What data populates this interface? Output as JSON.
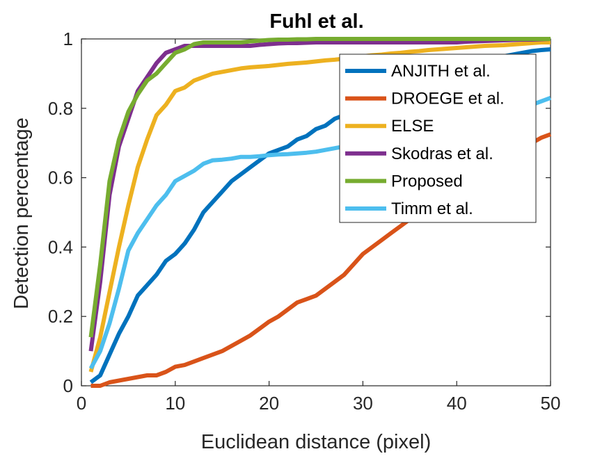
{
  "chart_data": {
    "type": "line",
    "title": "Fuhl et al.",
    "xlabel": "Euclidean distance (pixel)",
    "ylabel": "Detection percentage",
    "xlim": [
      0,
      50
    ],
    "ylim": [
      0,
      1
    ],
    "xticks": [
      0,
      10,
      20,
      30,
      40,
      50
    ],
    "yticks": [
      0,
      0.2,
      0.4,
      0.6,
      0.8,
      1
    ],
    "xtick_labels": [
      "0",
      "10",
      "20",
      "30",
      "40",
      "50"
    ],
    "ytick_labels": [
      "0",
      "0.2",
      "0.4",
      "0.6",
      "0.8",
      "1"
    ],
    "grid": false,
    "legend_position": "top-right",
    "x": [
      1,
      2,
      3,
      4,
      5,
      6,
      7,
      8,
      9,
      10,
      11,
      12,
      13,
      14,
      15,
      16,
      17,
      18,
      19,
      20,
      21,
      22,
      23,
      24,
      25,
      26,
      27,
      28,
      29,
      30,
      31,
      32,
      33,
      34,
      35,
      36,
      37,
      38,
      39,
      40,
      41,
      42,
      43,
      44,
      45,
      46,
      47,
      48,
      49,
      50
    ],
    "series": [
      {
        "name": "ANJITH et al.",
        "color": "#0072BD",
        "values": [
          0.01,
          0.03,
          0.09,
          0.15,
          0.2,
          0.26,
          0.29,
          0.32,
          0.36,
          0.38,
          0.41,
          0.45,
          0.5,
          0.53,
          0.56,
          0.59,
          0.61,
          0.63,
          0.65,
          0.67,
          0.68,
          0.69,
          0.71,
          0.72,
          0.74,
          0.75,
          0.77,
          0.78,
          0.79,
          0.8,
          0.81,
          0.82,
          0.83,
          0.84,
          0.85,
          0.86,
          0.87,
          0.88,
          0.89,
          0.9,
          0.91,
          0.92,
          0.93,
          0.94,
          0.95,
          0.955,
          0.96,
          0.965,
          0.968,
          0.97
        ]
      },
      {
        "name": "DROEGE et al.",
        "color": "#D95319",
        "values": [
          0.0,
          0.0,
          0.01,
          0.015,
          0.02,
          0.025,
          0.03,
          0.03,
          0.04,
          0.055,
          0.06,
          0.07,
          0.08,
          0.09,
          0.1,
          0.115,
          0.13,
          0.145,
          0.165,
          0.185,
          0.2,
          0.22,
          0.24,
          0.25,
          0.26,
          0.28,
          0.3,
          0.32,
          0.35,
          0.38,
          0.4,
          0.42,
          0.44,
          0.46,
          0.48,
          0.5,
          0.52,
          0.54,
          0.56,
          0.58,
          0.6,
          0.62,
          0.64,
          0.66,
          0.67,
          0.68,
          0.69,
          0.7,
          0.715,
          0.725
        ]
      },
      {
        "name": "ELSE",
        "color": "#EDB120",
        "values": [
          0.04,
          0.14,
          0.27,
          0.4,
          0.52,
          0.63,
          0.71,
          0.78,
          0.81,
          0.85,
          0.86,
          0.88,
          0.89,
          0.9,
          0.905,
          0.91,
          0.915,
          0.918,
          0.92,
          0.922,
          0.925,
          0.928,
          0.93,
          0.932,
          0.935,
          0.938,
          0.94,
          0.943,
          0.946,
          0.95,
          0.953,
          0.955,
          0.958,
          0.96,
          0.963,
          0.965,
          0.968,
          0.97,
          0.972,
          0.974,
          0.976,
          0.978,
          0.98,
          0.981,
          0.982,
          0.984,
          0.986,
          0.988,
          0.99,
          0.99
        ]
      },
      {
        "name": "Skodras et al.",
        "color": "#7E2F8E",
        "values": [
          0.1,
          0.3,
          0.55,
          0.69,
          0.77,
          0.85,
          0.89,
          0.93,
          0.96,
          0.97,
          0.98,
          0.98,
          0.98,
          0.98,
          0.98,
          0.98,
          0.98,
          0.98,
          0.983,
          0.985,
          0.987,
          0.988,
          0.988,
          0.989,
          0.99,
          0.99,
          0.99,
          0.99,
          0.99,
          0.99,
          0.99,
          0.99,
          0.99,
          0.99,
          0.99,
          0.99,
          0.99,
          0.99,
          0.99,
          0.99,
          0.992,
          0.993,
          0.994,
          0.995,
          0.996,
          0.997,
          0.998,
          0.998,
          0.999,
          1.0
        ]
      },
      {
        "name": "Proposed",
        "color": "#77AC30",
        "values": [
          0.14,
          0.35,
          0.59,
          0.71,
          0.79,
          0.84,
          0.88,
          0.9,
          0.93,
          0.96,
          0.97,
          0.985,
          0.99,
          0.99,
          0.99,
          0.99,
          0.99,
          0.993,
          0.995,
          0.997,
          0.998,
          0.998,
          0.999,
          0.999,
          1.0,
          1.0,
          1.0,
          1.0,
          1.0,
          1.0,
          1.0,
          1.0,
          1.0,
          1.0,
          1.0,
          1.0,
          1.0,
          1.0,
          1.0,
          1.0,
          1.0,
          1.0,
          1.0,
          1.0,
          1.0,
          1.0,
          1.0,
          1.0,
          1.0,
          1.0
        ]
      },
      {
        "name": "Timm et al.",
        "color": "#4DBEEE",
        "values": [
          0.05,
          0.1,
          0.18,
          0.28,
          0.39,
          0.44,
          0.48,
          0.52,
          0.55,
          0.59,
          0.605,
          0.62,
          0.64,
          0.65,
          0.652,
          0.655,
          0.66,
          0.66,
          0.662,
          0.665,
          0.667,
          0.668,
          0.67,
          0.672,
          0.675,
          0.68,
          0.685,
          0.69,
          0.695,
          0.7,
          0.705,
          0.71,
          0.715,
          0.72,
          0.725,
          0.73,
          0.735,
          0.74,
          0.745,
          0.75,
          0.755,
          0.76,
          0.765,
          0.77,
          0.78,
          0.79,
          0.8,
          0.81,
          0.82,
          0.83
        ]
      }
    ]
  }
}
